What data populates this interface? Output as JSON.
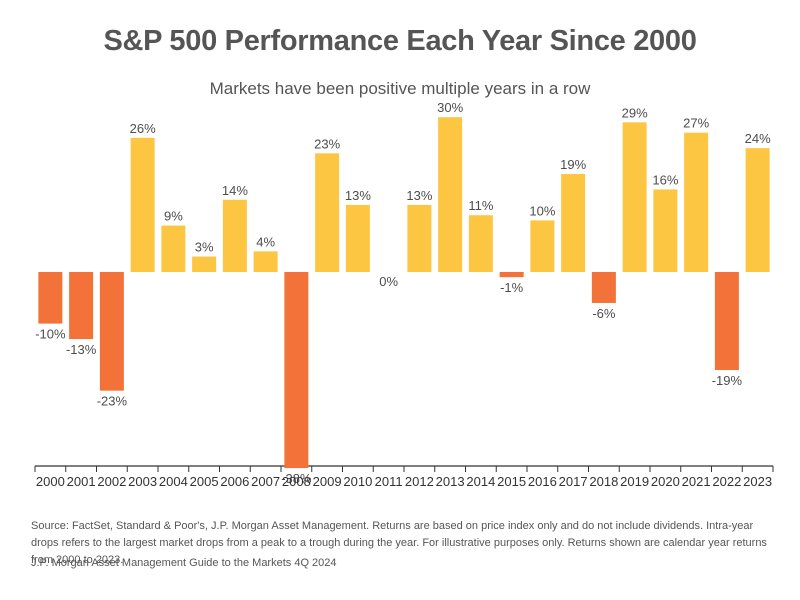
{
  "title": "S&P 500 Performance Each Year Since 2000",
  "subtitle": "Markets have been positive multiple years in a row",
  "source_note": "Source: FactSet, Standard & Poor's, J.P. Morgan Asset Management. Returns are based on price index only and do not include dividends. Intra-year drops refers to the largest market drops from a peak to a trough during the year. For illustrative purposes only. Returns shown are calendar year returns from 2000 to 2023.",
  "publication_note": "J.P. Morgan Asset Management Guide to the Markets 4Q 2024",
  "colors": {
    "positive": "#fcc642",
    "negative": "#f2723a",
    "axis": "#333333",
    "text": "#4d4d4d"
  },
  "chart_data": {
    "type": "bar",
    "title": "S&P 500 Performance Each Year Since 2000",
    "subtitle": "Markets have been positive multiple years in a row",
    "xlabel": "",
    "ylabel": "",
    "ylim": [
      -55,
      35
    ],
    "grid": false,
    "categories": [
      "2000",
      "2001",
      "2002",
      "2003",
      "2004",
      "2005",
      "2006",
      "2007",
      "2008",
      "2009",
      "2010",
      "2011",
      "2012",
      "2013",
      "2014",
      "2015",
      "2016",
      "2017",
      "2018",
      "2019",
      "2020",
      "2021",
      "2022",
      "2023"
    ],
    "values": [
      -10,
      -13,
      -23,
      26,
      9,
      3,
      14,
      4,
      -38,
      23,
      13,
      0,
      13,
      30,
      11,
      -1,
      10,
      19,
      -6,
      29,
      16,
      27,
      -19,
      24
    ],
    "data_labels": [
      "-10%",
      "-13%",
      "-23%",
      "26%",
      "9%",
      "3%",
      "14%",
      "4%",
      "-38%",
      "23%",
      "13%",
      "0%",
      "13%",
      "30%",
      "11%",
      "-1%",
      "10%",
      "19%",
      "-6%",
      "29%",
      "16%",
      "27%",
      "-19%",
      "24%"
    ]
  }
}
